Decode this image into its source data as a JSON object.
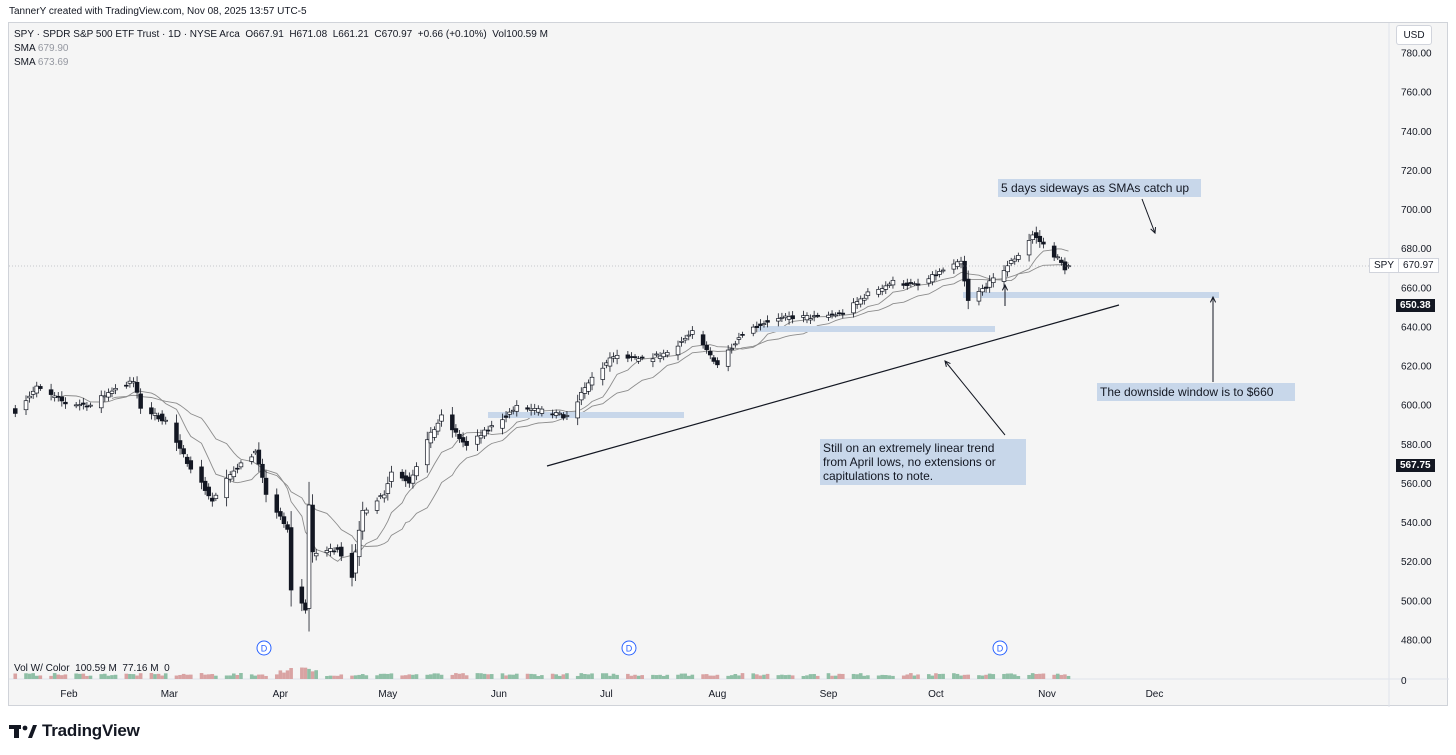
{
  "credit": "TannerY created with TradingView.com, Nov 08, 2025 13:57 UTC-5",
  "legend": {
    "symbol_line": "SPY · SPDR S&P 500 ETF Trust · 1D · NYSE Arca",
    "open": "O667.91",
    "high": "H671.08",
    "low": "L661.21",
    "close": "C670.97",
    "change": "+0.66 (+0.10%)",
    "volume": "Vol100.59 M",
    "sma1_label": "SMA",
    "sma1_value": "679.90",
    "sma2_label": "SMA",
    "sma2_value": "673.69"
  },
  "currency_button": "USD",
  "volume_legend": {
    "label": "Vol W/ Color",
    "v1": "100.59 M",
    "v2": "77.16 M",
    "v3": "0"
  },
  "price_tags": {
    "spy_symbol": "SPY",
    "spy_price": "670.97",
    "level1": "650.38",
    "level2": "567.75"
  },
  "annotations": {
    "sideways": "5 days sideways as SMAs catch up",
    "downside": "The downside window is to $660",
    "trend_line1": "Still on an extremely linear trend",
    "trend_line2": "from April lows, no extensions or",
    "trend_line3": "capitulations to note."
  },
  "dividend_marker": "D",
  "footer_brand": "TradingView",
  "colors": {
    "bull_fill": "#ffffff",
    "bear_fill": "#131722",
    "sma": "#8c8c8c",
    "annotation_band": "#c8d7ea"
  },
  "chart_data": {
    "type": "candlestick",
    "symbol": "SPY",
    "y_ticks": [
      480,
      500,
      520,
      540,
      560,
      580,
      600,
      620,
      640,
      660,
      680,
      700,
      720,
      740,
      760,
      780
    ],
    "y_tick_labels": [
      "480.00",
      "500.00",
      "520.00",
      "540.00",
      "560.00",
      "580.00",
      "600.00",
      "620.00",
      "640.00",
      "660.00",
      "680.00",
      "700.00",
      "720.00",
      "740.00",
      "760.00",
      "780.00"
    ],
    "ylim": [
      470,
      790
    ],
    "volume_axis_label": "0",
    "x_date_range": [
      "2025-01-16",
      "2025-12-10"
    ],
    "x_ticks": [
      {
        "label": "Feb",
        "date": "2025-02-01"
      },
      {
        "label": "Mar",
        "date": "2025-03-01"
      },
      {
        "label": "Apr",
        "date": "2025-04-01"
      },
      {
        "label": "May",
        "date": "2025-05-01"
      },
      {
        "label": "Jun",
        "date": "2025-06-01"
      },
      {
        "label": "Jul",
        "date": "2025-07-01"
      },
      {
        "label": "Aug",
        "date": "2025-08-01"
      },
      {
        "label": "Sep",
        "date": "2025-09-01"
      },
      {
        "label": "Oct",
        "date": "2025-10-01"
      },
      {
        "label": "Nov",
        "date": "2025-11-01"
      },
      {
        "label": "Dec",
        "date": "2025-12-01"
      }
    ],
    "closes": [
      {
        "date": "2025-01-17",
        "close": 597
      },
      {
        "date": "2025-01-23",
        "close": 609
      },
      {
        "date": "2025-01-31",
        "close": 601
      },
      {
        "date": "2025-02-07",
        "close": 600
      },
      {
        "date": "2025-02-14",
        "close": 609
      },
      {
        "date": "2025-02-19",
        "close": 612
      },
      {
        "date": "2025-02-21",
        "close": 599
      },
      {
        "date": "2025-02-28",
        "close": 592
      },
      {
        "date": "2025-03-04",
        "close": 577
      },
      {
        "date": "2025-03-10",
        "close": 560
      },
      {
        "date": "2025-03-13",
        "close": 551
      },
      {
        "date": "2025-03-19",
        "close": 567
      },
      {
        "date": "2025-03-25",
        "close": 576
      },
      {
        "date": "2025-03-28",
        "close": 555
      },
      {
        "date": "2025-04-03",
        "close": 536
      },
      {
        "date": "2025-04-04",
        "close": 506
      },
      {
        "date": "2025-04-08",
        "close": 496
      },
      {
        "date": "2025-04-09",
        "close": 549
      },
      {
        "date": "2025-04-10",
        "close": 524
      },
      {
        "date": "2025-04-17",
        "close": 527
      },
      {
        "date": "2025-04-21",
        "close": 513
      },
      {
        "date": "2025-04-24",
        "close": 546
      },
      {
        "date": "2025-04-30",
        "close": 555
      },
      {
        "date": "2025-05-02",
        "close": 566
      },
      {
        "date": "2025-05-07",
        "close": 561
      },
      {
        "date": "2025-05-12",
        "close": 582
      },
      {
        "date": "2025-05-16",
        "close": 594
      },
      {
        "date": "2025-05-23",
        "close": 579
      },
      {
        "date": "2025-05-30",
        "close": 589
      },
      {
        "date": "2025-06-06",
        "close": 599
      },
      {
        "date": "2025-06-13",
        "close": 597
      },
      {
        "date": "2025-06-20",
        "close": 594
      },
      {
        "date": "2025-06-27",
        "close": 614
      },
      {
        "date": "2025-07-03",
        "close": 625
      },
      {
        "date": "2025-07-11",
        "close": 623
      },
      {
        "date": "2025-07-18",
        "close": 627
      },
      {
        "date": "2025-07-25",
        "close": 637
      },
      {
        "date": "2025-08-01",
        "close": 621
      },
      {
        "date": "2025-08-08",
        "close": 637
      },
      {
        "date": "2025-08-15",
        "close": 643
      },
      {
        "date": "2025-08-22",
        "close": 645
      },
      {
        "date": "2025-08-29",
        "close": 645
      },
      {
        "date": "2025-09-05",
        "close": 647
      },
      {
        "date": "2025-09-12",
        "close": 657
      },
      {
        "date": "2025-09-19",
        "close": 663
      },
      {
        "date": "2025-09-26",
        "close": 661
      },
      {
        "date": "2025-10-03",
        "close": 669
      },
      {
        "date": "2025-10-08",
        "close": 673
      },
      {
        "date": "2025-10-10",
        "close": 653
      },
      {
        "date": "2025-10-17",
        "close": 664
      },
      {
        "date": "2025-10-24",
        "close": 677
      },
      {
        "date": "2025-10-28",
        "close": 687
      },
      {
        "date": "2025-10-31",
        "close": 682
      },
      {
        "date": "2025-11-04",
        "close": 675
      },
      {
        "date": "2025-11-06",
        "close": 670
      },
      {
        "date": "2025-11-07",
        "close": 671
      }
    ]
  }
}
